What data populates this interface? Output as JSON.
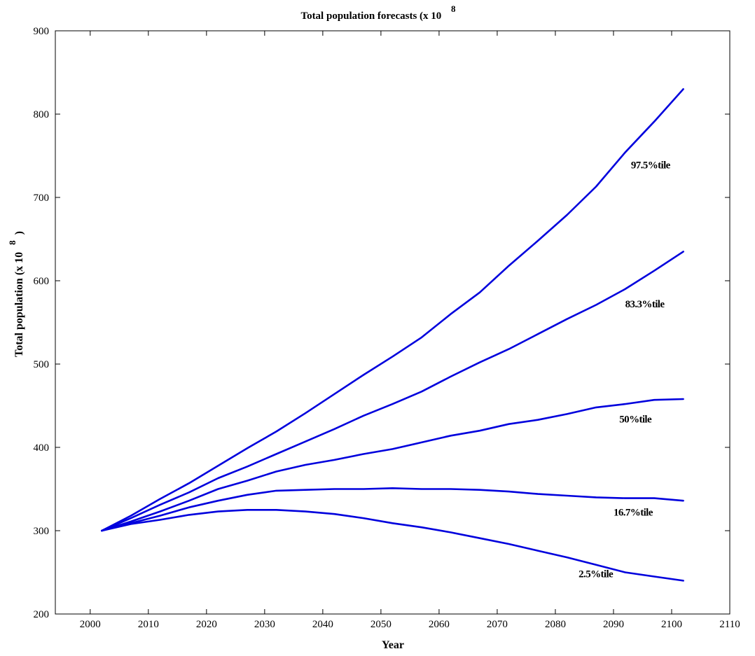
{
  "chart_data": {
    "type": "line",
    "title": "Total population forecasts (x 10",
    "title_superscript": "8",
    "xlabel": "Year",
    "ylabel": "Total population (x 10",
    "ylabel_superscript": "8",
    "ylabel_suffix": ")",
    "xlim": [
      1994,
      2110
    ],
    "ylim": [
      200,
      900
    ],
    "xticks": [
      2000,
      2010,
      2020,
      2030,
      2040,
      2050,
      2060,
      2070,
      2080,
      2090,
      2100,
      2110
    ],
    "yticks": [
      200,
      300,
      400,
      500,
      600,
      700,
      800,
      900
    ],
    "line_color": "#0000dd",
    "grid": false,
    "x": [
      2002,
      2007,
      2012,
      2017,
      2022,
      2027,
      2032,
      2037,
      2042,
      2047,
      2052,
      2057,
      2062,
      2067,
      2072,
      2077,
      2082,
      2087,
      2092,
      2097,
      2102
    ],
    "series": [
      {
        "name": "97.5%tile",
        "label_at": [
          2093,
          735
        ],
        "values": [
          300,
          318,
          338,
          357,
          378,
          399,
          419,
          441,
          464,
          487,
          509,
          532,
          560,
          586,
          618,
          648,
          679,
          713,
          754,
          791,
          830
        ]
      },
      {
        "name": "83.3%tile",
        "label_at": [
          2092,
          568
        ],
        "values": [
          300,
          315,
          331,
          346,
          363,
          377,
          392,
          407,
          422,
          438,
          452,
          467,
          485,
          502,
          518,
          536,
          554,
          571,
          590,
          612,
          635
        ]
      },
      {
        "name": "50%tile",
        "label_at": [
          2091,
          430
        ],
        "values": [
          300,
          311,
          323,
          336,
          350,
          360,
          371,
          379,
          385,
          392,
          398,
          406,
          414,
          420,
          428,
          433,
          440,
          448,
          452,
          457,
          458
        ]
      },
      {
        "name": "16.7%tile",
        "label_at": [
          2090,
          318
        ],
        "values": [
          300,
          309,
          318,
          328,
          336,
          343,
          348,
          349,
          350,
          350,
          351,
          350,
          350,
          349,
          347,
          344,
          342,
          340,
          339,
          339,
          336
        ]
      },
      {
        "name": "2.5%tile",
        "label_at": [
          2084,
          244
        ],
        "values": [
          300,
          308,
          313,
          319,
          323,
          325,
          325,
          323,
          320,
          315,
          309,
          304,
          298,
          291,
          284,
          276,
          268,
          259,
          250,
          245,
          240
        ]
      }
    ]
  }
}
